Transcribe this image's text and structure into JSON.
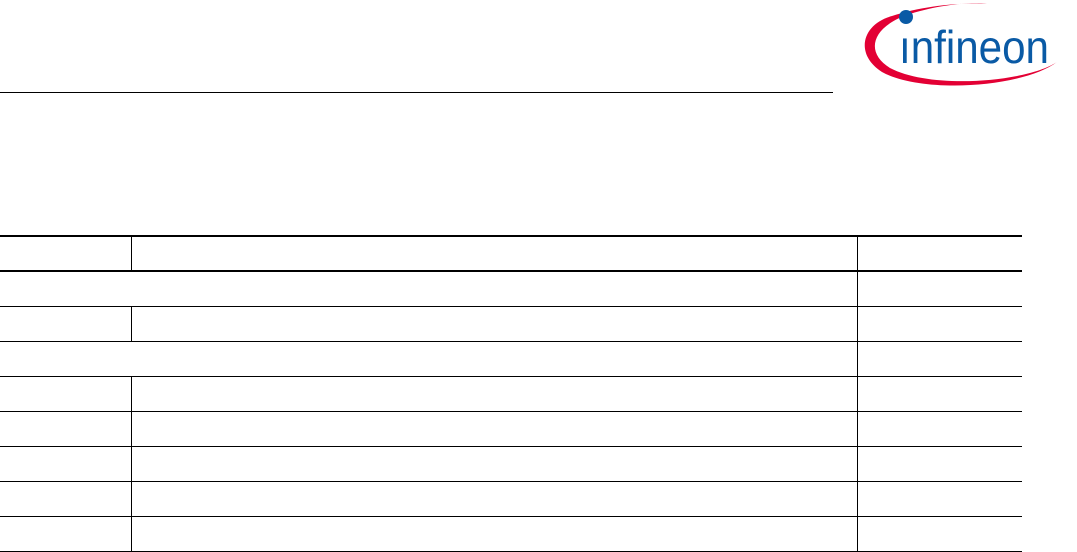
{
  "header": {
    "logo": {
      "text": "infineon",
      "colors": {
        "text": "#0A5AA5",
        "swoosh": "#E30034"
      }
    }
  },
  "table": {
    "rows": [
      {
        "type": "header",
        "cells": [
          "",
          "",
          ""
        ]
      },
      {
        "type": "span",
        "cells": [
          "",
          ""
        ]
      },
      {
        "type": "normal",
        "cells": [
          "",
          "",
          ""
        ]
      },
      {
        "type": "span",
        "cells": [
          "",
          ""
        ]
      },
      {
        "type": "normal",
        "cells": [
          "",
          "",
          ""
        ]
      },
      {
        "type": "normal",
        "cells": [
          "",
          "",
          ""
        ]
      },
      {
        "type": "normal",
        "cells": [
          "",
          "",
          ""
        ]
      },
      {
        "type": "normal",
        "cells": [
          "",
          "",
          ""
        ]
      },
      {
        "type": "normal",
        "cells": [
          "",
          "",
          ""
        ]
      }
    ]
  }
}
